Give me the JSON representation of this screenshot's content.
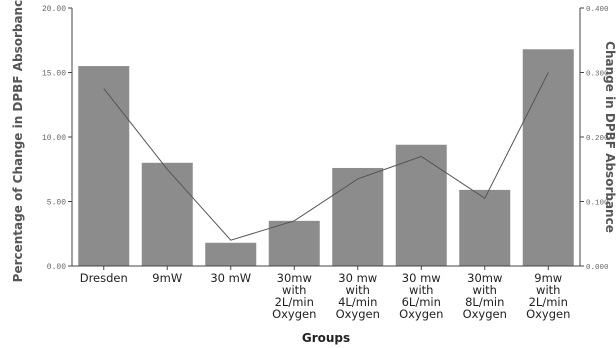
{
  "chart_data": {
    "type": "bar",
    "xlabel": "Groups",
    "ylabel_left": "Percentage of Change in DPBF Absorbance",
    "ylabel_right": "Change in DPBF Absorbance",
    "categories": [
      [
        "Dresden"
      ],
      [
        "9mW"
      ],
      [
        "30 mW"
      ],
      [
        "30mw",
        "with",
        "2L/min",
        "Oxygen"
      ],
      [
        "30 mw",
        "with",
        "4L/min",
        "Oxygen"
      ],
      [
        "30 mw",
        "with",
        "6L/min",
        "Oxygen"
      ],
      [
        "30mw",
        "with",
        "8L/min",
        "Oxygen"
      ],
      [
        "9mw",
        "with",
        "2L/min",
        "Oxygen"
      ]
    ],
    "series": [
      {
        "type": "bar",
        "axis": "left",
        "values": [
          15.5,
          8.0,
          1.8,
          3.5,
          7.6,
          9.4,
          5.9,
          16.8
        ]
      },
      {
        "type": "line",
        "axis": "right",
        "values": [
          0.275,
          0.15,
          0.04,
          0.07,
          0.135,
          0.17,
          0.105,
          0.3
        ]
      }
    ],
    "ylim_left": [
      0,
      20
    ],
    "yticks_left": [
      "0.00",
      "5.00",
      "10.00",
      "15.00",
      "20.00"
    ],
    "ylim_right": [
      0,
      0.4
    ],
    "yticks_right": [
      "0.000",
      "0.100",
      "0.200",
      "0.300",
      "0.400"
    ],
    "colors": {
      "bar": "#8c8c8c",
      "line": "#555555",
      "axis": "#444444"
    },
    "grid": false
  }
}
